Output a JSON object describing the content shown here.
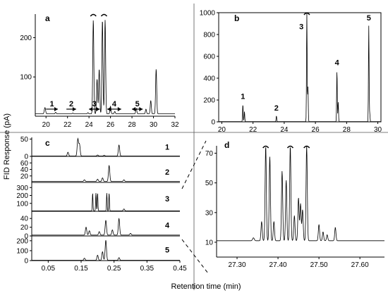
{
  "figure": {
    "ylabel": "FID Response (pA)",
    "xlabel": "Retention time (min)"
  },
  "chart_data": [
    {
      "panel": "a",
      "type": "line",
      "xlim": [
        19,
        32
      ],
      "ylim": [
        0,
        260
      ],
      "xticks": [
        20,
        22,
        24,
        26,
        28,
        30,
        32
      ],
      "yticks": [
        100,
        200
      ],
      "series": [
        {
          "baseline": 6,
          "peaks": [
            {
              "x": 19.9,
              "y": 22,
              "w": 0.06
            },
            {
              "x": 20.9,
              "y": 10,
              "w": 0.05
            },
            {
              "x": 22.5,
              "y": 8,
              "w": 0.05
            },
            {
              "x": 23.9,
              "y": 9,
              "w": 0.05
            },
            {
              "x": 24.4,
              "y": 245,
              "w": 0.05
            },
            {
              "x": 24.75,
              "y": 95,
              "w": 0.05
            },
            {
              "x": 24.95,
              "y": 120,
              "w": 0.05
            },
            {
              "x": 25.25,
              "y": 245,
              "w": 0.05
            },
            {
              "x": 25.5,
              "y": 245,
              "w": 0.05
            },
            {
              "x": 26.0,
              "y": 25,
              "w": 0.05
            },
            {
              "x": 26.4,
              "y": 12,
              "w": 0.05
            },
            {
              "x": 28.4,
              "y": 20,
              "w": 0.05
            },
            {
              "x": 29.3,
              "y": 18,
              "w": 0.05
            },
            {
              "x": 29.75,
              "y": 40,
              "w": 0.05
            },
            {
              "x": 30.25,
              "y": 120,
              "w": 0.05
            }
          ]
        }
      ],
      "truncated_marks": [
        24.4,
        25.4
      ],
      "fractions": [
        {
          "label": "1",
          "x1": 20.0,
          "x2": 21.1,
          "dir": "right"
        },
        {
          "label": "2",
          "x1": 21.9,
          "x2": 22.8,
          "dir": "right"
        },
        {
          "label": "3",
          "x1": 24.0,
          "x2": 25.0,
          "dir": "both"
        },
        {
          "label": "4",
          "x1": 25.7,
          "x2": 27.0,
          "dir": "both"
        },
        {
          "label": "5",
          "x1": 28.0,
          "x2": 29.0,
          "dir": "both"
        }
      ]
    },
    {
      "panel": "b",
      "type": "line",
      "xlim": [
        19.8,
        30.2
      ],
      "ylim": [
        0,
        1000
      ],
      "xticks": [
        20,
        22,
        24,
        26,
        28,
        30
      ],
      "yticks": [
        0,
        200,
        400,
        600,
        800,
        1000
      ],
      "series": [
        {
          "baseline": 2,
          "peaks": [
            {
              "x": 21.35,
              "y": 160,
              "w": 0.02
            },
            {
              "x": 21.45,
              "y": 95,
              "w": 0.02
            },
            {
              "x": 23.5,
              "y": 55,
              "w": 0.02
            },
            {
              "x": 25.45,
              "y": 1000,
              "w": 0.02
            },
            {
              "x": 25.52,
              "y": 320,
              "w": 0.02
            },
            {
              "x": 27.38,
              "y": 470,
              "w": 0.02
            },
            {
              "x": 27.46,
              "y": 180,
              "w": 0.02
            },
            {
              "x": 29.42,
              "y": 880,
              "w": 0.02
            },
            {
              "x": 29.48,
              "y": 80,
              "w": 0.02
            }
          ]
        }
      ],
      "truncated_marks": [
        25.45
      ],
      "peak_labels": [
        {
          "label": "1",
          "x": 21.35,
          "y": 190
        },
        {
          "label": "2",
          "x": 23.5,
          "y": 85
        },
        {
          "label": "3",
          "x": 25.1,
          "y": 830
        },
        {
          "label": "4",
          "x": 27.38,
          "y": 500
        },
        {
          "label": "5",
          "x": 29.42,
          "y": 910
        }
      ]
    },
    {
      "panel": "c",
      "type": "line",
      "xlim": [
        0,
        0.45
      ],
      "xticks": [
        0.05,
        0.15,
        0.25,
        0.35,
        0.45
      ],
      "tick_labels": [
        "0.05",
        "0.15",
        "0.25",
        "0.35",
        "0.45"
      ],
      "strips": [
        {
          "label": "1",
          "ylim": [
            0,
            55
          ],
          "yticks": [
            0,
            50
          ],
          "ytick_labels": [
            "0",
            "50"
          ],
          "baseline": 1,
          "peaks": [
            {
              "x": 0.11,
              "y": 12,
              "w": 0.002
            },
            {
              "x": 0.14,
              "y": 50,
              "w": 0.002
            },
            {
              "x": 0.145,
              "y": 35,
              "w": 0.002
            },
            {
              "x": 0.2,
              "y": 4,
              "w": 0.002
            },
            {
              "x": 0.22,
              "y": 3,
              "w": 0.002
            },
            {
              "x": 0.265,
              "y": 33,
              "w": 0.002
            }
          ]
        },
        {
          "label": "2",
          "ylim": [
            0,
            65
          ],
          "yticks": [
            20,
            40,
            60
          ],
          "ytick_labels": [
            "20",
            "40",
            "60"
          ],
          "baseline": 3,
          "peaks": [
            {
              "x": 0.16,
              "y": 8,
              "w": 0.002
            },
            {
              "x": 0.2,
              "y": 10,
              "w": 0.002
            },
            {
              "x": 0.215,
              "y": 14,
              "w": 0.002
            },
            {
              "x": 0.235,
              "y": 52,
              "w": 0.002
            },
            {
              "x": 0.28,
              "y": 8,
              "w": 0.002
            }
          ]
        },
        {
          "label": "3",
          "ylim": [
            0,
            320
          ],
          "yticks": [
            100,
            200,
            300
          ],
          "ytick_labels": [
            "100",
            "200",
            "300"
          ],
          "baseline": 5,
          "peaks": [
            {
              "x": 0.185,
              "y": 230,
              "w": 0.001
            },
            {
              "x": 0.195,
              "y": 230,
              "w": 0.001
            },
            {
              "x": 0.2,
              "y": 230,
              "w": 0.001
            },
            {
              "x": 0.228,
              "y": 230,
              "w": 0.001
            },
            {
              "x": 0.235,
              "y": 230,
              "w": 0.001
            },
            {
              "x": 0.28,
              "y": 30,
              "w": 0.002
            }
          ]
        },
        {
          "label": "4",
          "ylim": [
            0,
            50
          ],
          "yticks": [
            0,
            20,
            40
          ],
          "ytick_labels": [
            "0",
            "20",
            "40"
          ],
          "baseline": 2,
          "peaks": [
            {
              "x": 0.165,
              "y": 20,
              "w": 0.002
            },
            {
              "x": 0.175,
              "y": 12,
              "w": 0.002
            },
            {
              "x": 0.205,
              "y": 10,
              "w": 0.002
            },
            {
              "x": 0.225,
              "y": 36,
              "w": 0.002
            },
            {
              "x": 0.245,
              "y": 14,
              "w": 0.002
            },
            {
              "x": 0.265,
              "y": 40,
              "w": 0.002
            },
            {
              "x": 0.3,
              "y": 6,
              "w": 0.002
            }
          ]
        },
        {
          "label": "5",
          "ylim": [
            0,
            220
          ],
          "yticks": [
            0,
            100,
            200
          ],
          "ytick_labels": [
            "0",
            "100",
            "200"
          ],
          "baseline": 3,
          "peaks": [
            {
              "x": 0.16,
              "y": 25,
              "w": 0.002
            },
            {
              "x": 0.2,
              "y": 55,
              "w": 0.002
            },
            {
              "x": 0.215,
              "y": 90,
              "w": 0.002
            },
            {
              "x": 0.225,
              "y": 205,
              "w": 0.002
            },
            {
              "x": 0.265,
              "y": 30,
              "w": 0.002
            }
          ]
        }
      ]
    },
    {
      "panel": "d",
      "type": "line",
      "xlim": [
        27.25,
        27.66
      ],
      "ylim": [
        0,
        75
      ],
      "xticks": [
        27.3,
        27.4,
        27.5,
        27.6
      ],
      "xtick_labels": [
        "27.30",
        "27.40",
        "27.50",
        "27.60"
      ],
      "yticks": [
        10,
        30,
        50,
        70
      ],
      "series": [
        {
          "baseline": 11,
          "peaks": [
            {
              "x": 27.34,
              "y": 13,
              "w": 0.002
            },
            {
              "x": 27.36,
              "y": 24,
              "w": 0.0015
            },
            {
              "x": 27.37,
              "y": 75,
              "w": 0.0015
            },
            {
              "x": 27.38,
              "y": 68,
              "w": 0.0015
            },
            {
              "x": 27.39,
              "y": 24,
              "w": 0.0015
            },
            {
              "x": 27.41,
              "y": 58,
              "w": 0.0015
            },
            {
              "x": 27.42,
              "y": 52,
              "w": 0.0015
            },
            {
              "x": 27.43,
              "y": 75,
              "w": 0.0015
            },
            {
              "x": 27.44,
              "y": 28,
              "w": 0.0015
            },
            {
              "x": 27.45,
              "y": 40,
              "w": 0.0015
            },
            {
              "x": 27.455,
              "y": 36,
              "w": 0.0015
            },
            {
              "x": 27.46,
              "y": 32,
              "w": 0.0015
            },
            {
              "x": 27.47,
              "y": 75,
              "w": 0.0015
            },
            {
              "x": 27.5,
              "y": 22,
              "w": 0.0015
            },
            {
              "x": 27.51,
              "y": 17,
              "w": 0.0015
            },
            {
              "x": 27.52,
              "y": 15,
              "w": 0.0015
            },
            {
              "x": 27.54,
              "y": 20,
              "w": 0.0015
            }
          ]
        }
      ],
      "truncated_marks": [
        27.37,
        27.43,
        27.47
      ]
    }
  ]
}
